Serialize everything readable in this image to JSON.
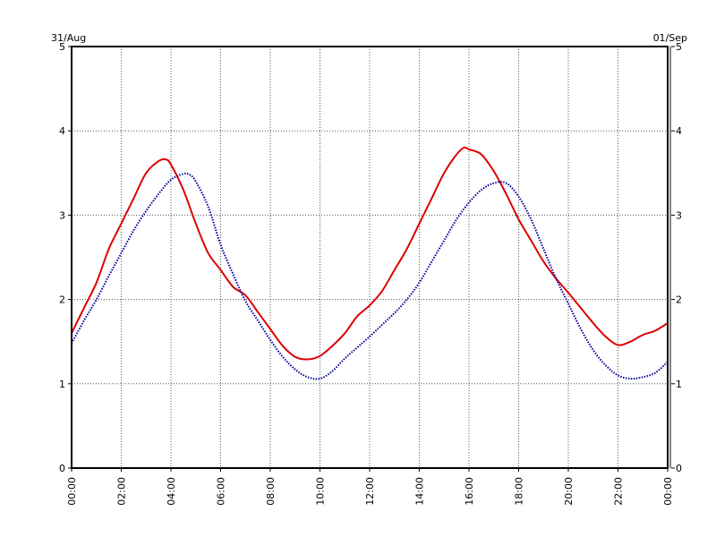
{
  "chart_data": {
    "type": "line",
    "date_left": "31/Aug",
    "date_right": "01/Sep",
    "x_ticks": [
      "00:00",
      "02:00",
      "04:00",
      "06:00",
      "08:00",
      "10:00",
      "12:00",
      "14:00",
      "16:00",
      "18:00",
      "20:00",
      "22:00",
      "00:00"
    ],
    "y_ticks": [
      "0",
      "1",
      "2",
      "3",
      "4",
      "5"
    ],
    "xlim_hours": [
      0,
      24
    ],
    "ylim": [
      0,
      5
    ],
    "grid": true,
    "series": [
      {
        "color": "#dd0000",
        "style": "solid",
        "hours": [
          0,
          0.5,
          1,
          1.5,
          2,
          2.5,
          3,
          3.5,
          3.8,
          4,
          4.5,
          5,
          5.5,
          6,
          6.5,
          7,
          7.5,
          8,
          8.5,
          9,
          9.5,
          10,
          10.5,
          11,
          11.5,
          12,
          12.5,
          13,
          13.5,
          14,
          14.5,
          15,
          15.5,
          15.8,
          16,
          16.5,
          17,
          17.5,
          18,
          18.5,
          19,
          19.5,
          20,
          20.5,
          21,
          21.5,
          22,
          22.5,
          23,
          23.5,
          24
        ],
        "values": [
          1.6,
          1.9,
          2.2,
          2.6,
          2.9,
          3.2,
          3.5,
          3.64,
          3.66,
          3.6,
          3.3,
          2.9,
          2.55,
          2.35,
          2.15,
          2.05,
          1.85,
          1.65,
          1.45,
          1.32,
          1.29,
          1.33,
          1.45,
          1.6,
          1.8,
          1.93,
          2.1,
          2.35,
          2.6,
          2.9,
          3.2,
          3.5,
          3.72,
          3.8,
          3.78,
          3.72,
          3.52,
          3.25,
          2.95,
          2.7,
          2.45,
          2.25,
          2.08,
          1.9,
          1.72,
          1.56,
          1.46,
          1.5,
          1.58,
          1.63,
          1.72
        ]
      },
      {
        "color": "#000099",
        "style": "dotted",
        "hours": [
          0,
          0.5,
          1,
          1.5,
          2,
          2.5,
          3,
          3.5,
          4,
          4.5,
          4.75,
          5,
          5.5,
          6,
          6.5,
          7,
          7.5,
          8,
          8.5,
          9,
          9.5,
          10,
          10.5,
          11,
          11.5,
          12,
          12.5,
          13,
          13.5,
          14,
          14.5,
          15,
          15.5,
          16,
          16.5,
          17,
          17.5,
          18,
          18.5,
          19,
          19.5,
          20,
          20.5,
          21,
          21.5,
          22,
          22.5,
          23,
          23.5,
          24
        ],
        "values": [
          1.48,
          1.75,
          2.0,
          2.28,
          2.55,
          2.82,
          3.05,
          3.25,
          3.42,
          3.49,
          3.48,
          3.4,
          3.1,
          2.65,
          2.3,
          1.98,
          1.75,
          1.52,
          1.32,
          1.17,
          1.08,
          1.06,
          1.15,
          1.3,
          1.43,
          1.56,
          1.7,
          1.84,
          2.0,
          2.2,
          2.45,
          2.7,
          2.95,
          3.15,
          3.3,
          3.38,
          3.38,
          3.22,
          2.95,
          2.6,
          2.25,
          1.95,
          1.65,
          1.4,
          1.22,
          1.1,
          1.06,
          1.08,
          1.13,
          1.26
        ]
      }
    ]
  }
}
